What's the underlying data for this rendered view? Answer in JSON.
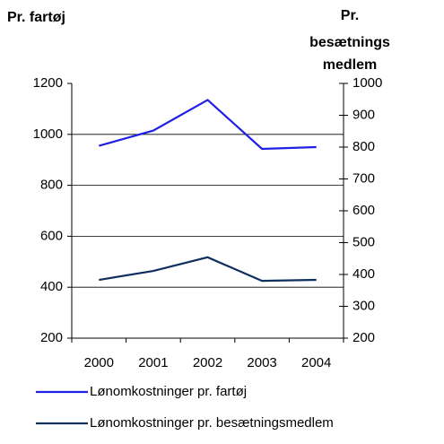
{
  "chart_data": {
    "type": "line",
    "ylabel": "Pr. fartøj",
    "y2label": [
      "Pr.",
      "besætnings",
      "medlem"
    ],
    "categories": [
      "2000",
      "2001",
      "2002",
      "2003",
      "2004"
    ],
    "series": [
      {
        "name": "Lønomkostninger pr. fartøj",
        "color": "#1f1fe6",
        "axis": "y",
        "values": [
          955,
          1015,
          1135,
          943,
          950
        ]
      },
      {
        "name": "Lønomkostninger pr. besætningsmedlem",
        "color": "#0f2f5f",
        "axis": "y2",
        "values": [
          383,
          411,
          454,
          380,
          383
        ]
      }
    ],
    "ylim": [
      200,
      1200
    ],
    "yticks": [
      200,
      400,
      600,
      800,
      1000,
      1200
    ],
    "y2lim": [
      200,
      1000
    ],
    "y2ticks": [
      200,
      300,
      400,
      500,
      600,
      700,
      800,
      900,
      1000
    ],
    "grid": true,
    "legend": "bottom"
  }
}
